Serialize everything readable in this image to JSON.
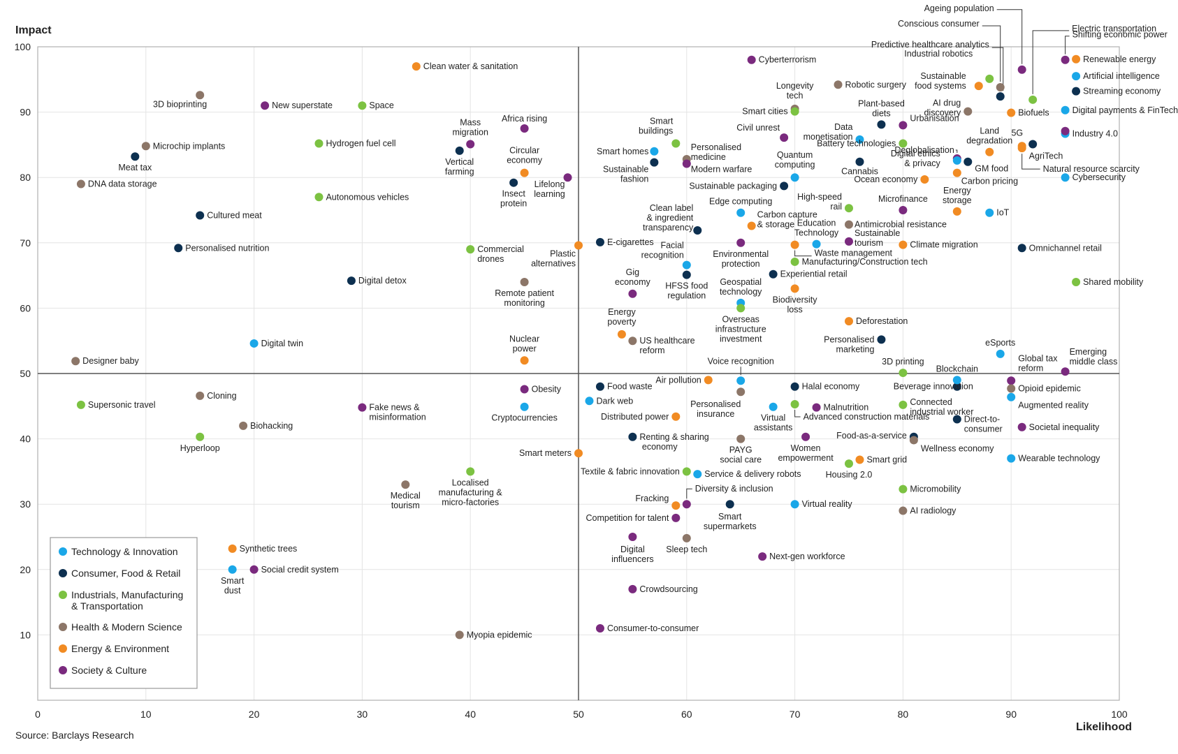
{
  "chart_data": {
    "type": "scatter",
    "title": "",
    "xlabel": "Likelihood",
    "ylabel": "Impact",
    "xlim": [
      0,
      100
    ],
    "ylim": [
      0,
      100
    ],
    "x_ticks": [
      "0",
      "10",
      "20",
      "30",
      "40",
      "50",
      "60",
      "70",
      "80",
      "90",
      "100"
    ],
    "y_ticks": [
      "10",
      "20",
      "30",
      "40",
      "50",
      "60",
      "70",
      "80",
      "90",
      "100"
    ],
    "divider_x": 50,
    "divider_y": 50,
    "grid": true,
    "legend_position": "bottom-left",
    "source": "Source: Barclays Research",
    "categories": [
      {
        "id": "tech",
        "name": "Technology & Innovation",
        "color": "#1aa7e8"
      },
      {
        "id": "consumer",
        "name": "Consumer, Food & Retail",
        "color": "#0d3050"
      },
      {
        "id": "industrial",
        "name": "Industrials, Manufacturing & Transportation",
        "color": "#7cc242"
      },
      {
        "id": "health",
        "name": "Health & Modern Science",
        "color": "#8c7668"
      },
      {
        "id": "energy",
        "name": "Energy & Environment",
        "color": "#f18b23"
      },
      {
        "id": "society",
        "name": "Society & Culture",
        "color": "#7a2a7e"
      }
    ],
    "points": [
      {
        "label": "Cyberterrorism",
        "x": 66,
        "y": 98,
        "cat": "society"
      },
      {
        "label": "Clean water & sanitation",
        "x": 35,
        "y": 97,
        "cat": "energy"
      },
      {
        "label": "3D bioprinting",
        "x": 15,
        "y": 92.6,
        "cat": "health"
      },
      {
        "label": "New superstate",
        "x": 21,
        "y": 91,
        "cat": "society"
      },
      {
        "label": "Space",
        "x": 30,
        "y": 91,
        "cat": "industrial"
      },
      {
        "label": "Microchip implants",
        "x": 10,
        "y": 84.8,
        "cat": "health"
      },
      {
        "label": "Hydrogen fuel cell",
        "x": 26,
        "y": 85.2,
        "cat": "industrial"
      },
      {
        "label": "Meat tax",
        "x": 9,
        "y": 83.2,
        "cat": "consumer"
      },
      {
        "label": "DNA data storage",
        "x": 4,
        "y": 79,
        "cat": "health"
      },
      {
        "label": "Autonomous vehicles",
        "x": 26,
        "y": 77,
        "cat": "industrial"
      },
      {
        "label": "Cultured meat",
        "x": 15,
        "y": 74.2,
        "cat": "consumer"
      },
      {
        "label": "Personalised nutrition",
        "x": 13,
        "y": 69.2,
        "cat": "consumer"
      },
      {
        "label": "Digital detox",
        "x": 29,
        "y": 64.2,
        "cat": "consumer"
      },
      {
        "label": "Mass migration",
        "x": 40,
        "y": 85.1,
        "cat": "society"
      },
      {
        "label": "Vertical farming",
        "x": 39,
        "y": 84.1,
        "cat": "consumer"
      },
      {
        "label": "Africa rising",
        "x": 45,
        "y": 87.5,
        "cat": "society"
      },
      {
        "label": "Circular economy",
        "x": 45,
        "y": 80.7,
        "cat": "energy"
      },
      {
        "label": "Insect protein",
        "x": 44,
        "y": 79.2,
        "cat": "consumer"
      },
      {
        "label": "Lifelong learning",
        "x": 49,
        "y": 80,
        "cat": "society"
      },
      {
        "label": "Commercial drones",
        "x": 40,
        "y": 69,
        "cat": "industrial"
      },
      {
        "label": "Plastic alternatives",
        "x": 50,
        "y": 69.6,
        "cat": "energy"
      },
      {
        "label": "Remote patient monitoring",
        "x": 45,
        "y": 64,
        "cat": "health"
      },
      {
        "label": "Digital twin",
        "x": 20,
        "y": 54.6,
        "cat": "tech"
      },
      {
        "label": "Designer baby",
        "x": 3.5,
        "y": 51.9,
        "cat": "health"
      },
      {
        "label": "Nuclear power",
        "x": 45,
        "y": 52,
        "cat": "energy"
      },
      {
        "label": "Supersonic travel",
        "x": 4,
        "y": 45.2,
        "cat": "industrial"
      },
      {
        "label": "Cloning",
        "x": 15,
        "y": 46.6,
        "cat": "health"
      },
      {
        "label": "Fake news & misinformation",
        "x": 30,
        "y": 44.8,
        "cat": "society"
      },
      {
        "label": "Biohacking",
        "x": 19,
        "y": 42,
        "cat": "health"
      },
      {
        "label": "Hyperloop",
        "x": 15,
        "y": 40.3,
        "cat": "industrial"
      },
      {
        "label": "Obesity",
        "x": 45,
        "y": 47.6,
        "cat": "society"
      },
      {
        "label": "Cryptocurrencies",
        "x": 45,
        "y": 44.9,
        "cat": "tech"
      },
      {
        "label": "Smart meters",
        "x": 50,
        "y": 37.8,
        "cat": "energy"
      },
      {
        "label": "Medical tourism",
        "x": 34,
        "y": 33,
        "cat": "health"
      },
      {
        "label": "Localised manufacturing & micro-factories",
        "x": 40,
        "y": 35,
        "cat": "industrial"
      },
      {
        "label": "Synthetic trees",
        "x": 18,
        "y": 23.2,
        "cat": "energy"
      },
      {
        "label": "Smart dust",
        "x": 18,
        "y": 20,
        "cat": "tech"
      },
      {
        "label": "Social credit system",
        "x": 20,
        "y": 20,
        "cat": "society"
      },
      {
        "label": "Myopia epidemic",
        "x": 39,
        "y": 10,
        "cat": "health"
      },
      {
        "label": "E-cigarettes",
        "x": 52,
        "y": 70.1,
        "cat": "consumer"
      },
      {
        "label": "Smart buildings",
        "x": 59,
        "y": 85.2,
        "cat": "industrial"
      },
      {
        "label": "Smart homes",
        "x": 57,
        "y": 84,
        "cat": "tech"
      },
      {
        "label": "Personalised medicine",
        "x": 60,
        "y": 82.8,
        "cat": "health"
      },
      {
        "label": "Sustainable fashion",
        "x": 57,
        "y": 82.3,
        "cat": "consumer"
      },
      {
        "label": "Modern warfare",
        "x": 60,
        "y": 82.1,
        "cat": "society"
      },
      {
        "label": "Clean label & ingredient transparency",
        "x": 61,
        "y": 71.9,
        "cat": "consumer"
      },
      {
        "label": "Facial recognition",
        "x": 60,
        "y": 66.6,
        "cat": "tech"
      },
      {
        "label": "HFSS food regulation",
        "x": 60,
        "y": 65.1,
        "cat": "consumer"
      },
      {
        "label": "Gig economy",
        "x": 55,
        "y": 62.2,
        "cat": "society"
      },
      {
        "label": "Energy poverty",
        "x": 54,
        "y": 56,
        "cat": "energy"
      },
      {
        "label": "US healthcare reform",
        "x": 55,
        "y": 55,
        "cat": "health"
      },
      {
        "label": "Longevity tech",
        "x": 70,
        "y": 90.5,
        "cat": "health"
      },
      {
        "label": "Smart cities",
        "x": 70,
        "y": 90.1,
        "cat": "industrial"
      },
      {
        "label": "Civil unrest",
        "x": 69,
        "y": 86.1,
        "cat": "society"
      },
      {
        "label": "Quantum computing",
        "x": 70,
        "y": 80,
        "cat": "tech"
      },
      {
        "label": "Sustainable packaging",
        "x": 69,
        "y": 78.7,
        "cat": "consumer"
      },
      {
        "label": "Edge computing",
        "x": 65,
        "y": 74.6,
        "cat": "tech"
      },
      {
        "label": "Carbon capture & storage",
        "x": 66,
        "y": 72.6,
        "cat": "energy"
      },
      {
        "label": "Environmental protection",
        "x": 65,
        "y": 70,
        "cat": "society"
      },
      {
        "label": "Education Technology",
        "x": 72,
        "y": 69.8,
        "cat": "tech"
      },
      {
        "label": "Waste management",
        "x": 70,
        "y": 69.7,
        "cat": "energy"
      },
      {
        "label": "Manufacturing/Construction tech",
        "x": 70,
        "y": 67.1,
        "cat": "industrial"
      },
      {
        "label": "Experiential retail",
        "x": 68,
        "y": 65.2,
        "cat": "consumer"
      },
      {
        "label": "Geospatial technology",
        "x": 65,
        "y": 60.8,
        "cat": "tech"
      },
      {
        "label": "Biodiversity loss",
        "x": 70,
        "y": 63,
        "cat": "energy"
      },
      {
        "label": "Overseas infrastructure investment",
        "x": 65,
        "y": 60,
        "cat": "industrial"
      },
      {
        "label": "Robotic surgery",
        "x": 74,
        "y": 94.2,
        "cat": "health"
      },
      {
        "label": "Data monetisation",
        "x": 76,
        "y": 85.8,
        "cat": "tech"
      },
      {
        "label": "Plant-based diets",
        "x": 78,
        "y": 88.1,
        "cat": "consumer"
      },
      {
        "label": "Urbanisation",
        "x": 80,
        "y": 88,
        "cat": "society"
      },
      {
        "label": "Battery technologies",
        "x": 80,
        "y": 85.2,
        "cat": "industrial"
      },
      {
        "label": "Cannabis",
        "x": 76,
        "y": 82.4,
        "cat": "consumer"
      },
      {
        "label": "Ocean economy",
        "x": 82,
        "y": 79.7,
        "cat": "energy"
      },
      {
        "label": "High-speed rail",
        "x": 75,
        "y": 75.3,
        "cat": "industrial"
      },
      {
        "label": "Microfinance",
        "x": 80,
        "y": 75,
        "cat": "society"
      },
      {
        "label": "Antimicrobial resistance",
        "x": 75,
        "y": 72.8,
        "cat": "health"
      },
      {
        "label": "Sustainable tourism",
        "x": 75,
        "y": 70.2,
        "cat": "society"
      },
      {
        "label": "Climate migration",
        "x": 80,
        "y": 69.7,
        "cat": "energy"
      },
      {
        "label": "Deforestation",
        "x": 75,
        "y": 58,
        "cat": "energy"
      },
      {
        "label": "Personalised marketing",
        "x": 78,
        "y": 55.2,
        "cat": "consumer"
      },
      {
        "label": "Energy storage",
        "x": 85,
        "y": 74.8,
        "cat": "energy"
      },
      {
        "label": "IoT",
        "x": 88,
        "y": 74.6,
        "cat": "tech"
      },
      {
        "label": "Sustainable food systems",
        "x": 87,
        "y": 94,
        "cat": "energy"
      },
      {
        "label": "Industrial robotics",
        "x": 88,
        "y": 95.1,
        "cat": "industrial"
      },
      {
        "label": "AI drug discovery",
        "x": 86,
        "y": 90.1,
        "cat": "health"
      },
      {
        "label": "Deglobalisation",
        "x": 85,
        "y": 82.9,
        "cat": "society"
      },
      {
        "label": "Digital ethics & privacy",
        "x": 85,
        "y": 82.6,
        "cat": "tech"
      },
      {
        "label": "GM food",
        "x": 86,
        "y": 82.4,
        "cat": "consumer"
      },
      {
        "label": "Carbon pricing",
        "x": 85,
        "y": 80.7,
        "cat": "energy"
      },
      {
        "label": "Land degradation",
        "x": 88,
        "y": 83.9,
        "cat": "energy"
      },
      {
        "label": "Ageing population",
        "x": 91,
        "y": 96.5,
        "cat": "society"
      },
      {
        "label": "Conscious consumer",
        "x": 89,
        "y": 93.8,
        "cat": "health"
      },
      {
        "label": "Predictive healthcare analytics",
        "x": 89,
        "y": 92.4,
        "cat": "consumer"
      },
      {
        "label": "Electric transportation",
        "x": 92,
        "y": 91.9,
        "cat": "industrial"
      },
      {
        "label": "Biofuels",
        "x": 90,
        "y": 89.9,
        "cat": "energy"
      },
      {
        "label": "AgriTech",
        "x": 91,
        "y": 84.8,
        "cat": "energy"
      },
      {
        "label": "5G",
        "x": 92,
        "y": 85.1,
        "cat": "consumer"
      },
      {
        "label": "Natural resource scarcity",
        "x": 91,
        "y": 84.5,
        "cat": "energy"
      },
      {
        "label": "Omnichannel retail",
        "x": 91,
        "y": 69.2,
        "cat": "consumer"
      },
      {
        "label": "Shifting economic power",
        "x": 95,
        "y": 98,
        "cat": "society"
      },
      {
        "label": "Renewable energy",
        "x": 96,
        "y": 98.1,
        "cat": "energy"
      },
      {
        "label": "Artificial intelligence",
        "x": 96,
        "y": 95.5,
        "cat": "tech"
      },
      {
        "label": "Streaming economy",
        "x": 96,
        "y": 93.2,
        "cat": "consumer"
      },
      {
        "label": "Digital payments & FinTech",
        "x": 95,
        "y": 90.3,
        "cat": "tech"
      },
      {
        "label": "Industry 4.0",
        "x": 95,
        "y": 86.7,
        "cat": "tech"
      },
      {
        "label": "Industry 4.0 (society)",
        "x": 95,
        "y": 87.1,
        "cat": "society"
      },
      {
        "label": "Cybersecurity",
        "x": 95,
        "y": 80,
        "cat": "tech"
      },
      {
        "label": "Shared mobility",
        "x": 96,
        "y": 64,
        "cat": "industrial"
      },
      {
        "label": "Food waste",
        "x": 52,
        "y": 48,
        "cat": "consumer"
      },
      {
        "label": "Dark web",
        "x": 51,
        "y": 45.8,
        "cat": "tech"
      },
      {
        "label": "Air pollution",
        "x": 62,
        "y": 49,
        "cat": "energy"
      },
      {
        "label": "Voice recognition",
        "x": 65,
        "y": 48.9,
        "cat": "tech"
      },
      {
        "label": "Personalised insurance",
        "x": 65,
        "y": 47.2,
        "cat": "health"
      },
      {
        "label": "Distributed power",
        "x": 59,
        "y": 43.4,
        "cat": "energy"
      },
      {
        "label": "Renting & sharing economy",
        "x": 55,
        "y": 40.3,
        "cat": "consumer"
      },
      {
        "label": "PAYG social care",
        "x": 65,
        "y": 40,
        "cat": "health"
      },
      {
        "label": "Virtual assistants",
        "x": 68,
        "y": 44.9,
        "cat": "tech"
      },
      {
        "label": "Halal economy",
        "x": 70,
        "y": 48,
        "cat": "consumer"
      },
      {
        "label": "Malnutrition",
        "x": 72,
        "y": 44.8,
        "cat": "society"
      },
      {
        "label": "Advanced construction materials",
        "x": 70,
        "y": 45.3,
        "cat": "industrial"
      },
      {
        "label": "Women empowerment",
        "x": 71,
        "y": 40.3,
        "cat": "society"
      },
      {
        "label": "Textile & fabric innovation",
        "x": 60,
        "y": 35,
        "cat": "industrial"
      },
      {
        "label": "Service & delivery robots",
        "x": 61,
        "y": 34.6,
        "cat": "tech"
      },
      {
        "label": "Fracking",
        "x": 59,
        "y": 29.8,
        "cat": "energy"
      },
      {
        "label": "Diversity & inclusion",
        "x": 60,
        "y": 30,
        "cat": "society"
      },
      {
        "label": "Smart supermarkets",
        "x": 64,
        "y": 30,
        "cat": "consumer"
      },
      {
        "label": "Competition for talent",
        "x": 59,
        "y": 27.9,
        "cat": "society"
      },
      {
        "label": "Digital influencers",
        "x": 55,
        "y": 25,
        "cat": "society"
      },
      {
        "label": "Sleep tech",
        "x": 60,
        "y": 24.8,
        "cat": "health"
      },
      {
        "label": "Next-gen workforce",
        "x": 67,
        "y": 22,
        "cat": "society"
      },
      {
        "label": "Virtual reality",
        "x": 70,
        "y": 30,
        "cat": "tech"
      },
      {
        "label": "Crowdsourcing",
        "x": 55,
        "y": 17,
        "cat": "society"
      },
      {
        "label": "Consumer-to-consumer",
        "x": 52,
        "y": 11,
        "cat": "society"
      },
      {
        "label": "3D printing",
        "x": 80,
        "y": 50.1,
        "cat": "industrial"
      },
      {
        "label": "Beverage innovation",
        "x": 85,
        "y": 48,
        "cat": "consumer"
      },
      {
        "label": "Blockchain",
        "x": 85,
        "y": 49,
        "cat": "tech"
      },
      {
        "label": "Connected industrial worker",
        "x": 80,
        "y": 45.2,
        "cat": "industrial"
      },
      {
        "label": "Direct-to-consumer",
        "x": 85,
        "y": 43,
        "cat": "consumer"
      },
      {
        "label": "Food-as-a-service",
        "x": 81,
        "y": 40.3,
        "cat": "consumer"
      },
      {
        "label": "Wellness economy",
        "x": 81,
        "y": 39.8,
        "cat": "health"
      },
      {
        "label": "Smart grid",
        "x": 76,
        "y": 36.8,
        "cat": "energy"
      },
      {
        "label": "Housing 2.0",
        "x": 75,
        "y": 36.2,
        "cat": "industrial"
      },
      {
        "label": "Micromobility",
        "x": 80,
        "y": 32.3,
        "cat": "industrial"
      },
      {
        "label": "AI radiology",
        "x": 80,
        "y": 29,
        "cat": "health"
      },
      {
        "label": "eSports",
        "x": 89,
        "y": 53,
        "cat": "tech"
      },
      {
        "label": "Global tax reform",
        "x": 90,
        "y": 48.9,
        "cat": "society"
      },
      {
        "label": "Opioid epidemic",
        "x": 90,
        "y": 47.7,
        "cat": "health"
      },
      {
        "label": "Augmented reality",
        "x": 90,
        "y": 46.4,
        "cat": "tech"
      },
      {
        "label": "Emerging middle class",
        "x": 95,
        "y": 50.3,
        "cat": "society"
      },
      {
        "label": "Societal inequality",
        "x": 91,
        "y": 41.8,
        "cat": "society"
      },
      {
        "label": "Wearable technology",
        "x": 90,
        "y": 37,
        "cat": "tech"
      }
    ]
  }
}
